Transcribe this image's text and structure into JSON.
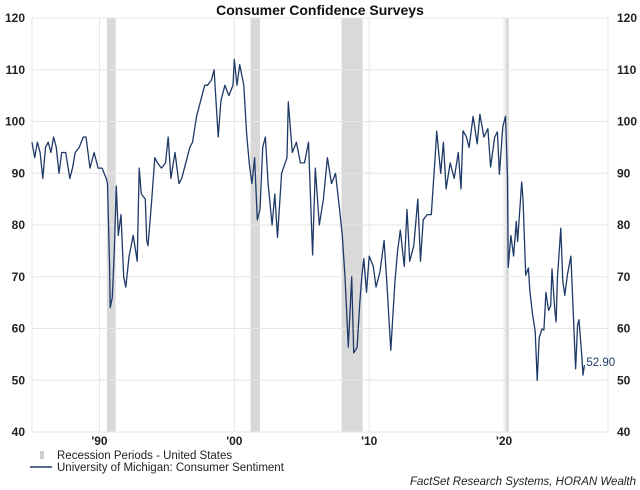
{
  "chart_data": {
    "type": "line",
    "title": "Consumer Confidence Surveys",
    "xlabel": "",
    "ylabel": "",
    "ylim": [
      40,
      120
    ],
    "xlim": [
      1985,
      2027.7
    ],
    "y_ticks": [
      "40",
      "50",
      "60",
      "70",
      "80",
      "90",
      "100",
      "110",
      "120"
    ],
    "x_ticks": [
      {
        "year": 1990,
        "label": "'90"
      },
      {
        "year": 2000,
        "label": "'00"
      },
      {
        "year": 2010,
        "label": "'10"
      },
      {
        "year": 2020,
        "label": "'20"
      }
    ],
    "grid": true,
    "legend_position": "bottom-left",
    "colors": {
      "line": "#1f3a68",
      "recession": "#d9d9d9",
      "grid": "#e6e6e6"
    },
    "recessions": {
      "name": "Recession Periods - United States",
      "periods": [
        [
          1990.55,
          1991.2
        ],
        [
          2001.2,
          2001.9
        ],
        [
          2007.95,
          2009.5
        ],
        [
          2020.1,
          2020.35
        ]
      ]
    },
    "series": [
      {
        "name": "University of Michigan: Consumer Sentiment",
        "end_label": "52.90",
        "points": [
          [
            1985.0,
            96
          ],
          [
            1985.2,
            93
          ],
          [
            1985.4,
            96
          ],
          [
            1985.6,
            94
          ],
          [
            1985.8,
            89
          ],
          [
            1986.0,
            95
          ],
          [
            1986.2,
            96
          ],
          [
            1986.4,
            94
          ],
          [
            1986.6,
            97
          ],
          [
            1986.8,
            95
          ],
          [
            1987.0,
            90
          ],
          [
            1987.2,
            94
          ],
          [
            1987.5,
            94
          ],
          [
            1987.8,
            89
          ],
          [
            1988.0,
            91
          ],
          [
            1988.2,
            94
          ],
          [
            1988.5,
            95
          ],
          [
            1988.8,
            97
          ],
          [
            1989.0,
            97
          ],
          [
            1989.3,
            91
          ],
          [
            1989.6,
            94
          ],
          [
            1989.9,
            91
          ],
          [
            1990.2,
            91
          ],
          [
            1990.5,
            89
          ],
          [
            1990.6,
            88
          ],
          [
            1990.75,
            72
          ],
          [
            1990.8,
            64
          ],
          [
            1990.95,
            66
          ],
          [
            1991.1,
            75
          ],
          [
            1991.25,
            87.5
          ],
          [
            1991.4,
            78
          ],
          [
            1991.6,
            82
          ],
          [
            1991.8,
            70
          ],
          [
            1991.95,
            68
          ],
          [
            1992.2,
            74
          ],
          [
            1992.5,
            78
          ],
          [
            1992.8,
            73
          ],
          [
            1992.95,
            91
          ],
          [
            1993.1,
            86
          ],
          [
            1993.4,
            85
          ],
          [
            1993.5,
            77
          ],
          [
            1993.6,
            76
          ],
          [
            1993.85,
            84
          ],
          [
            1994.1,
            93
          ],
          [
            1994.3,
            92
          ],
          [
            1994.6,
            91
          ],
          [
            1994.9,
            92
          ],
          [
            1995.1,
            97
          ],
          [
            1995.3,
            89
          ],
          [
            1995.6,
            94
          ],
          [
            1995.9,
            88
          ],
          [
            1996.1,
            89
          ],
          [
            1996.4,
            92
          ],
          [
            1996.7,
            95
          ],
          [
            1996.9,
            96
          ],
          [
            1997.2,
            101
          ],
          [
            1997.5,
            104
          ],
          [
            1997.8,
            107
          ],
          [
            1998.0,
            107
          ],
          [
            1998.3,
            108
          ],
          [
            1998.5,
            110
          ],
          [
            1998.8,
            97
          ],
          [
            1999.0,
            104
          ],
          [
            1999.3,
            107
          ],
          [
            1999.6,
            105
          ],
          [
            1999.9,
            107
          ],
          [
            2000.0,
            112
          ],
          [
            2000.2,
            107
          ],
          [
            2000.4,
            111
          ],
          [
            2000.7,
            107
          ],
          [
            2000.9,
            98
          ],
          [
            2001.1,
            92
          ],
          [
            2001.3,
            88
          ],
          [
            2001.5,
            93
          ],
          [
            2001.7,
            81
          ],
          [
            2001.9,
            83
          ],
          [
            2002.1,
            95
          ],
          [
            2002.3,
            97
          ],
          [
            2002.5,
            88
          ],
          [
            2002.8,
            80
          ],
          [
            2003.0,
            86
          ],
          [
            2003.2,
            77.6
          ],
          [
            2003.5,
            90
          ],
          [
            2003.9,
            93
          ],
          [
            2004.0,
            103.8
          ],
          [
            2004.3,
            94
          ],
          [
            2004.6,
            96
          ],
          [
            2004.9,
            92
          ],
          [
            2005.2,
            92
          ],
          [
            2005.5,
            96
          ],
          [
            2005.8,
            74.2
          ],
          [
            2006.0,
            91
          ],
          [
            2006.3,
            80
          ],
          [
            2006.6,
            85
          ],
          [
            2006.9,
            93
          ],
          [
            2007.2,
            88
          ],
          [
            2007.5,
            90
          ],
          [
            2007.8,
            83
          ],
          [
            2008.0,
            78
          ],
          [
            2008.2,
            70
          ],
          [
            2008.45,
            56.4
          ],
          [
            2008.7,
            70
          ],
          [
            2008.85,
            55.3
          ],
          [
            2009.1,
            56.3
          ],
          [
            2009.3,
            65
          ],
          [
            2009.45,
            70
          ],
          [
            2009.6,
            73.5
          ],
          [
            2009.8,
            67
          ],
          [
            2010.0,
            74
          ],
          [
            2010.3,
            72
          ],
          [
            2010.5,
            68
          ],
          [
            2010.8,
            71
          ],
          [
            2011.1,
            77
          ],
          [
            2011.3,
            69
          ],
          [
            2011.6,
            55.8
          ],
          [
            2011.9,
            69
          ],
          [
            2012.1,
            75
          ],
          [
            2012.3,
            79
          ],
          [
            2012.6,
            72
          ],
          [
            2012.8,
            83
          ],
          [
            2013.0,
            73
          ],
          [
            2013.3,
            76
          ],
          [
            2013.6,
            85
          ],
          [
            2013.8,
            73
          ],
          [
            2014.0,
            81
          ],
          [
            2014.3,
            82
          ],
          [
            2014.6,
            82
          ],
          [
            2014.9,
            93.6
          ],
          [
            2015.0,
            98.1
          ],
          [
            2015.3,
            90
          ],
          [
            2015.5,
            96
          ],
          [
            2015.7,
            87
          ],
          [
            2016.0,
            92
          ],
          [
            2016.3,
            89
          ],
          [
            2016.6,
            94
          ],
          [
            2016.8,
            87
          ],
          [
            2016.95,
            98.2
          ],
          [
            2017.2,
            97
          ],
          [
            2017.4,
            95
          ],
          [
            2017.7,
            101
          ],
          [
            2018.0,
            95.7
          ],
          [
            2018.2,
            101.4
          ],
          [
            2018.5,
            97
          ],
          [
            2018.8,
            98.6
          ],
          [
            2019.0,
            91.2
          ],
          [
            2019.3,
            97
          ],
          [
            2019.5,
            98
          ],
          [
            2019.65,
            89.8
          ],
          [
            2019.9,
            99
          ],
          [
            2020.1,
            101
          ],
          [
            2020.25,
            89
          ],
          [
            2020.3,
            71.8
          ],
          [
            2020.5,
            78
          ],
          [
            2020.7,
            74
          ],
          [
            2020.9,
            80.7
          ],
          [
            2021.0,
            76.8
          ],
          [
            2021.3,
            88.3
          ],
          [
            2021.4,
            85
          ],
          [
            2021.6,
            70.3
          ],
          [
            2021.8,
            71.7
          ],
          [
            2021.9,
            67.4
          ],
          [
            2022.1,
            62.8
          ],
          [
            2022.3,
            59.4
          ],
          [
            2022.45,
            50
          ],
          [
            2022.6,
            58.2
          ],
          [
            2022.8,
            59.9
          ],
          [
            2022.95,
            59.7
          ],
          [
            2023.1,
            67
          ],
          [
            2023.3,
            63.5
          ],
          [
            2023.45,
            64.4
          ],
          [
            2023.55,
            71.5
          ],
          [
            2023.75,
            63.8
          ],
          [
            2023.85,
            61.3
          ],
          [
            2023.95,
            69.7
          ],
          [
            2024.2,
            79.4
          ],
          [
            2024.35,
            69.1
          ],
          [
            2024.5,
            66.4
          ],
          [
            2024.7,
            70.5
          ],
          [
            2024.95,
            74
          ],
          [
            2025.1,
            64.7
          ],
          [
            2025.3,
            52.2
          ],
          [
            2025.45,
            60.7
          ],
          [
            2025.55,
            61.7
          ],
          [
            2025.75,
            55
          ],
          [
            2025.85,
            51
          ],
          [
            2025.95,
            52.9
          ]
        ]
      }
    ],
    "source": "FactSet Research Systems, HORAN Wealth"
  }
}
